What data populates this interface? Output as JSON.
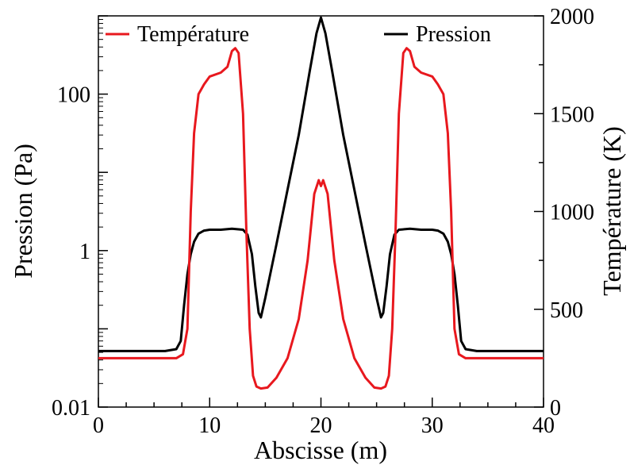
{
  "chart_data": {
    "type": "line",
    "title": "",
    "xlabel": "Abscisse (m)",
    "ylabel_left": "Pression (Pa)",
    "ylabel_right": "Température (K)",
    "xlim": [
      0,
      40
    ],
    "ylim_left": [
      0.01,
      1000
    ],
    "yscale_left": "log",
    "ylim_right": [
      0,
      2000
    ],
    "x_ticks": [
      0,
      10,
      20,
      30,
      40
    ],
    "x_tick_labels": [
      "0",
      "10",
      "20",
      "30",
      "40"
    ],
    "y_left_ticks": [
      0.01,
      1,
      100
    ],
    "y_left_tick_labels": [
      "0.01",
      "1",
      "100"
    ],
    "y_right_ticks": [
      0,
      500,
      1000,
      1500,
      2000
    ],
    "y_right_tick_labels": [
      "0",
      "500",
      "1000",
      "1500",
      "2000"
    ],
    "grid": false,
    "legend": {
      "entries": [
        {
          "name": "Température",
          "color": "#e8181e",
          "placement": "top-left"
        },
        {
          "name": "Pression",
          "color": "#000000",
          "placement": "top-right"
        }
      ]
    },
    "series": [
      {
        "name": "Pression",
        "axis": "left",
        "color": "#000000",
        "x": [
          0,
          6,
          7,
          7.4,
          7.7,
          8,
          8.3,
          8.6,
          9,
          9.5,
          10,
          11,
          12,
          13,
          13.4,
          13.8,
          14.1,
          14.4,
          14.6,
          15,
          16,
          17,
          18,
          19,
          19.6,
          20,
          20.4,
          21,
          22,
          23,
          24,
          25,
          25.4,
          25.6,
          25.9,
          26.2,
          26.6,
          27,
          28,
          29,
          30,
          30.5,
          31,
          31.4,
          31.7,
          32,
          32.3,
          32.6,
          33,
          34,
          40
        ],
        "y": [
          0.052,
          0.052,
          0.055,
          0.07,
          0.2,
          0.5,
          0.9,
          1.3,
          1.65,
          1.8,
          1.85,
          1.85,
          1.9,
          1.85,
          1.6,
          0.9,
          0.35,
          0.16,
          0.14,
          0.25,
          1.2,
          6,
          30,
          200,
          600,
          950,
          600,
          200,
          30,
          6,
          1.2,
          0.25,
          0.14,
          0.16,
          0.35,
          0.9,
          1.6,
          1.85,
          1.9,
          1.85,
          1.85,
          1.8,
          1.65,
          1.3,
          0.9,
          0.5,
          0.2,
          0.07,
          0.055,
          0.052,
          0.052
        ]
      },
      {
        "name": "Température",
        "axis": "right",
        "color": "#e8181e",
        "x": [
          0,
          7,
          7.6,
          8,
          8.3,
          8.6,
          9,
          9.5,
          10,
          11,
          11.6,
          12,
          12.3,
          12.6,
          13,
          13.3,
          13.6,
          13.9,
          14.2,
          14.6,
          15.2,
          16,
          17,
          18,
          18.8,
          19.4,
          19.8,
          20,
          20.2,
          20.6,
          21.2,
          22,
          23,
          24,
          24.8,
          25.4,
          25.8,
          26.1,
          26.4,
          26.7,
          27,
          27.4,
          27.7,
          28,
          28.4,
          29,
          30,
          30.5,
          31,
          31.4,
          31.7,
          32,
          32.4,
          33,
          40
        ],
        "y": [
          250,
          250,
          270,
          400,
          1000,
          1400,
          1600,
          1650,
          1690,
          1710,
          1740,
          1820,
          1835,
          1810,
          1500,
          900,
          400,
          160,
          105,
          95,
          100,
          150,
          250,
          450,
          750,
          1090,
          1160,
          1130,
          1160,
          1090,
          750,
          450,
          250,
          150,
          100,
          95,
          105,
          160,
          400,
          900,
          1500,
          1810,
          1835,
          1820,
          1740,
          1710,
          1690,
          1650,
          1600,
          1400,
          1000,
          400,
          270,
          250,
          250
        ]
      }
    ]
  }
}
